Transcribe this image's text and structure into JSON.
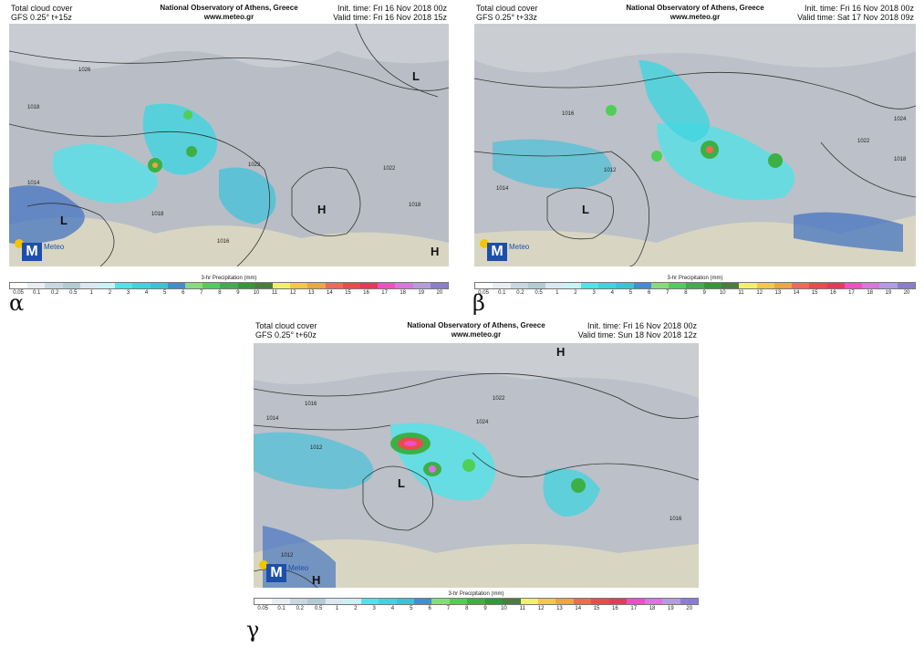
{
  "colorbar": {
    "title": "3-hr Precipitation (mm)",
    "ticks": [
      "0.05",
      "0.1",
      "0.2",
      "0.5",
      "1",
      "2",
      "3",
      "4",
      "5",
      "6",
      "7",
      "8",
      "9",
      "10",
      "11",
      "12",
      "13",
      "14",
      "15",
      "16",
      "17",
      "18",
      "19",
      "20"
    ],
    "colors": [
      "#ffffff",
      "#e8eef2",
      "#c9d8e0",
      "#b3cbd6",
      "#dbe7f0",
      "#c8f2f6",
      "#4fe3ea",
      "#40d4e0",
      "#39c2dc",
      "#3d8fd6",
      "#7fe07a",
      "#4fcf56",
      "#3cb044",
      "#2e9b3a",
      "#4b7d3e",
      "#f3f06a",
      "#f7c74a",
      "#f2a43e",
      "#ee6c52",
      "#ea4b4b",
      "#e73a58",
      "#f04ec9",
      "#e070e8",
      "#b59ae6",
      "#8c7cd6"
    ]
  },
  "panels": [
    {
      "label": "α",
      "title_left_1": "Total cloud cover",
      "title_left_2": "GFS 0.25° t+15z",
      "title_center_1": "National Observatory of Athens, Greece",
      "title_center_2": "www.meteo.gr",
      "title_right_1": "Init. time: Fri 16 Nov 2018 00z",
      "title_right_2": "Valid time: Fri 16 Nov 2018 15z",
      "pressure_labels": [
        "L",
        "L",
        "H",
        "H"
      ],
      "isobar_labels": [
        "1026",
        "1018",
        "1014",
        "1022",
        "1018",
        "1016",
        "1022",
        "1018"
      ]
    },
    {
      "label": "β",
      "title_left_1": "Total cloud cover",
      "title_left_2": "GFS 0.25° t+33z",
      "title_center_1": "National Observatory of Athens, Greece",
      "title_center_2": "www.meteo.gr",
      "title_right_1": "Init. time: Fri 16 Nov 2018 00z",
      "title_right_2": "Valid time: Sat 17 Nov 2018 09z",
      "pressure_labels": [
        "L"
      ],
      "isobar_labels": [
        "1016",
        "1012",
        "1014",
        "1022",
        "1018",
        "1024"
      ]
    },
    {
      "label": "γ",
      "title_left_1": "Total cloud cover",
      "title_left_2": "GFS 0.25° t+60z",
      "title_center_1": "National Observatory of Athens, Greece",
      "title_center_2": "www.meteo.gr",
      "title_right_1": "Init. time: Fri 16 Nov 2018 00z",
      "title_right_2": "Valid time: Sun 18 Nov 2018 12z",
      "pressure_labels": [
        "H",
        "L",
        "H"
      ],
      "isobar_labels": [
        "1016",
        "1014",
        "1012",
        "1022",
        "1024",
        "1016",
        "1012"
      ]
    }
  ],
  "logo": {
    "text": "Meteo"
  }
}
